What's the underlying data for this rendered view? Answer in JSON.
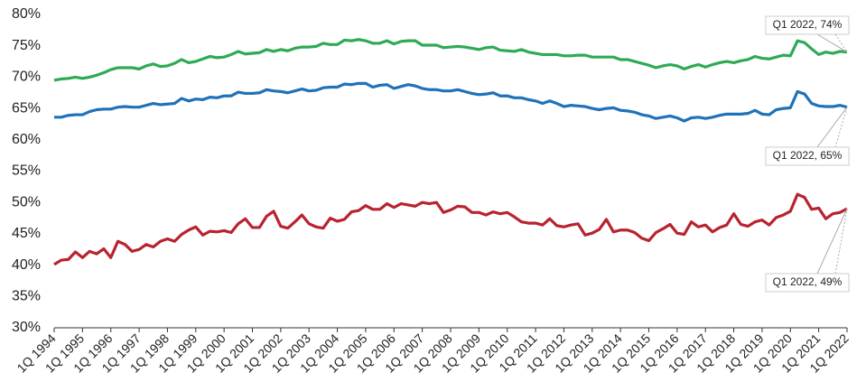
{
  "chart_data": {
    "type": "line",
    "categories": [
      "1Q 1994",
      null,
      null,
      null,
      "1Q 1995",
      null,
      null,
      null,
      "1Q 1996",
      null,
      null,
      null,
      "1Q 1997",
      null,
      null,
      null,
      "1Q 1998",
      null,
      null,
      null,
      "1Q 1999",
      null,
      null,
      null,
      "1Q 2000",
      null,
      null,
      null,
      "1Q 2001",
      null,
      null,
      null,
      "1Q 2002",
      null,
      null,
      null,
      "1Q 2003",
      null,
      null,
      null,
      "1Q 2004",
      null,
      null,
      null,
      "1Q 2005",
      null,
      null,
      null,
      "1Q 2006",
      null,
      null,
      null,
      "1Q 2007",
      null,
      null,
      null,
      "1Q 2008",
      null,
      null,
      null,
      "1Q 2009",
      null,
      null,
      null,
      "1Q 2010",
      null,
      null,
      null,
      "1Q 2011",
      null,
      null,
      null,
      "1Q 2012",
      null,
      null,
      null,
      "1Q 2013",
      null,
      null,
      null,
      "1Q 2014",
      null,
      null,
      null,
      "1Q 2015",
      null,
      null,
      null,
      "1Q 2016",
      null,
      null,
      null,
      "1Q 2017",
      null,
      null,
      null,
      "1Q 2018",
      null,
      null,
      null,
      "1Q 2019",
      null,
      null,
      null,
      "1Q 2020",
      null,
      null,
      null,
      "1Q 2021",
      null,
      null,
      null,
      "1Q 2022"
    ],
    "series": [
      {
        "color": "#2eaa55",
        "values": [
          69.5,
          69.7,
          69.8,
          70.0,
          69.8,
          70.0,
          70.3,
          70.7,
          71.2,
          71.5,
          71.5,
          71.5,
          71.3,
          71.8,
          72.1,
          71.7,
          71.8,
          72.2,
          72.8,
          72.3,
          72.5,
          72.9,
          73.3,
          73.1,
          73.2,
          73.6,
          74.1,
          73.7,
          73.8,
          73.9,
          74.4,
          74.1,
          74.4,
          74.2,
          74.6,
          74.8,
          74.8,
          74.9,
          75.4,
          75.2,
          75.2,
          75.9,
          75.8,
          76.0,
          75.8,
          75.4,
          75.4,
          75.8,
          75.3,
          75.7,
          75.8,
          75.8,
          75.1,
          75.1,
          75.1,
          74.7,
          74.8,
          74.9,
          74.8,
          74.6,
          74.4,
          74.7,
          74.8,
          74.3,
          74.2,
          74.1,
          74.4,
          74.0,
          73.8,
          73.6,
          73.6,
          73.6,
          73.4,
          73.4,
          73.5,
          73.5,
          73.2,
          73.2,
          73.2,
          73.2,
          72.8,
          72.8,
          72.5,
          72.2,
          71.9,
          71.5,
          71.8,
          72.0,
          71.8,
          71.3,
          71.7,
          72.0,
          71.6,
          72.0,
          72.3,
          72.5,
          72.3,
          72.6,
          72.8,
          73.3,
          73.0,
          72.9,
          73.2,
          73.5,
          73.4,
          75.8,
          75.5,
          74.5,
          73.6,
          74.0,
          73.8,
          74.1,
          74.0
        ]
      },
      {
        "color": "#1f72b8",
        "values": [
          63.6,
          63.6,
          63.9,
          64.0,
          64.0,
          64.5,
          64.8,
          64.9,
          64.9,
          65.2,
          65.3,
          65.2,
          65.2,
          65.5,
          65.8,
          65.6,
          65.7,
          65.8,
          66.6,
          66.2,
          66.5,
          66.4,
          66.8,
          66.7,
          67.0,
          67.0,
          67.6,
          67.4,
          67.4,
          67.5,
          68.0,
          67.8,
          67.7,
          67.5,
          67.8,
          68.1,
          67.8,
          67.9,
          68.3,
          68.4,
          68.4,
          68.9,
          68.8,
          69.0,
          69.0,
          68.4,
          68.7,
          68.8,
          68.2,
          68.5,
          68.8,
          68.6,
          68.2,
          68.0,
          68.0,
          67.8,
          67.8,
          68.0,
          67.7,
          67.4,
          67.2,
          67.3,
          67.5,
          67.0,
          67.0,
          66.7,
          66.7,
          66.4,
          66.2,
          65.8,
          66.2,
          65.8,
          65.3,
          65.5,
          65.4,
          65.3,
          65.0,
          64.8,
          65.0,
          65.1,
          64.7,
          64.6,
          64.4,
          64.0,
          63.8,
          63.4,
          63.6,
          63.8,
          63.5,
          63.0,
          63.5,
          63.6,
          63.4,
          63.6,
          63.9,
          64.1,
          64.1,
          64.1,
          64.2,
          64.7,
          64.1,
          64.0,
          64.8,
          65.0,
          65.1,
          67.7,
          67.3,
          65.8,
          65.4,
          65.3,
          65.3,
          65.5,
          65.2
        ]
      },
      {
        "color": "#b8232f",
        "values": [
          40.1,
          40.8,
          40.9,
          42.1,
          41.2,
          42.2,
          41.8,
          42.6,
          41.2,
          43.8,
          43.3,
          42.2,
          42.5,
          43.3,
          42.9,
          43.8,
          44.2,
          43.8,
          44.9,
          45.6,
          46.1,
          44.8,
          45.4,
          45.3,
          45.5,
          45.2,
          46.6,
          47.4,
          46.0,
          46.0,
          47.8,
          48.6,
          46.2,
          45.9,
          46.9,
          48.0,
          46.6,
          46.1,
          45.9,
          47.5,
          47.0,
          47.3,
          48.5,
          48.7,
          49.5,
          48.9,
          48.9,
          49.8,
          49.2,
          49.8,
          49.6,
          49.4,
          50.0,
          49.8,
          50.0,
          48.4,
          48.8,
          49.4,
          49.3,
          48.4,
          48.4,
          48.0,
          48.5,
          48.2,
          48.4,
          47.7,
          46.9,
          46.7,
          46.7,
          46.4,
          47.4,
          46.3,
          46.1,
          46.4,
          46.6,
          44.8,
          45.1,
          45.7,
          47.3,
          45.3,
          45.6,
          45.6,
          45.2,
          44.3,
          43.9,
          45.2,
          45.8,
          46.5,
          45.1,
          44.9,
          46.9,
          46.1,
          46.4,
          45.3,
          46.0,
          46.4,
          48.2,
          46.5,
          46.2,
          46.9,
          47.2,
          46.4,
          47.6,
          48.0,
          48.6,
          51.3,
          50.8,
          48.9,
          49.1,
          47.4,
          48.2,
          48.4,
          49.0
        ]
      }
    ],
    "annotations": [
      "Q1 2022, 74%",
      "Q1 2022, 65%",
      "Q1 2022, 49%"
    ],
    "ylim": [
      30,
      80
    ],
    "yticks": [
      {
        "value": 30,
        "label": "30%"
      },
      {
        "value": 35,
        "label": "35%"
      },
      {
        "value": 40,
        "label": "40%"
      },
      {
        "value": 45,
        "label": "45%"
      },
      {
        "value": 50,
        "label": "50%"
      },
      {
        "value": 55,
        "label": "55%"
      },
      {
        "value": 60,
        "label": "60%"
      },
      {
        "value": 65,
        "label": "65%"
      },
      {
        "value": 70,
        "label": "70%"
      },
      {
        "value": 75,
        "label": "75%"
      },
      {
        "value": 80,
        "label": "80%"
      }
    ]
  }
}
